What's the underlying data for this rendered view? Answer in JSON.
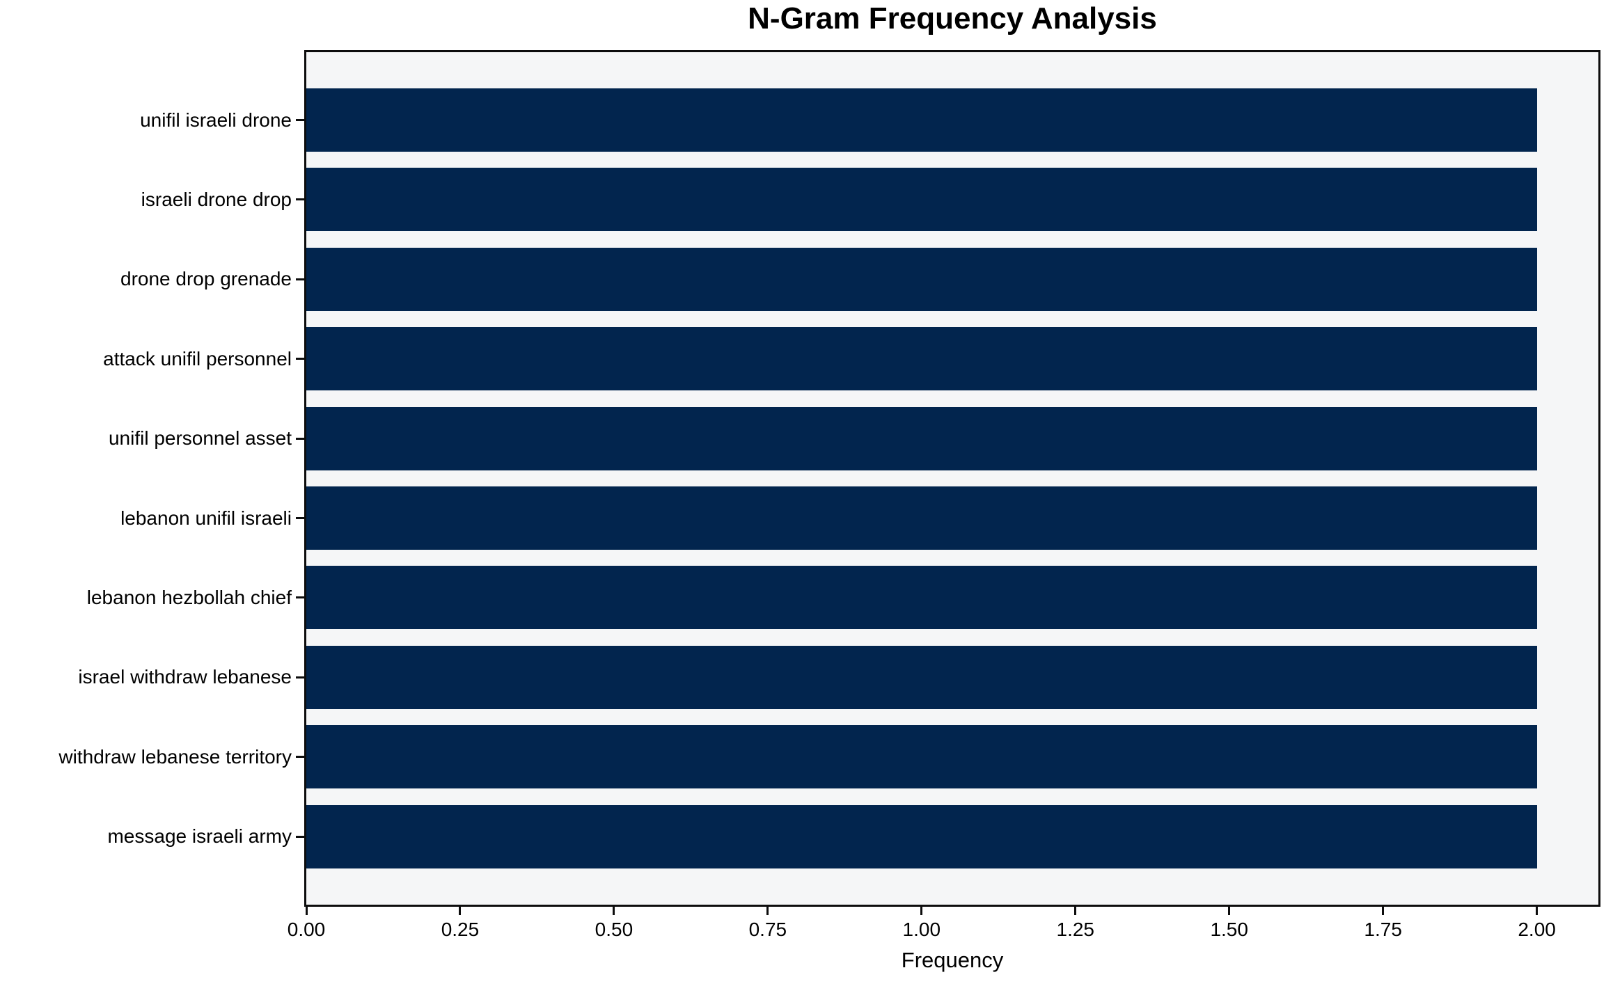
{
  "chart_data": {
    "type": "bar",
    "orientation": "horizontal",
    "title": "N-Gram Frequency Analysis",
    "xlabel": "Frequency",
    "ylabel": "",
    "categories": [
      "unifil israeli drone",
      "israeli drone drop",
      "drone drop grenade",
      "attack unifil personnel",
      "unifil personnel asset",
      "lebanon unifil israeli",
      "lebanon hezbollah chief",
      "israel withdraw lebanese",
      "withdraw lebanese territory",
      "message israeli army"
    ],
    "values": [
      2,
      2,
      2,
      2,
      2,
      2,
      2,
      2,
      2,
      2
    ],
    "xticks": [
      0,
      0.25,
      0.5,
      0.75,
      1.0,
      1.25,
      1.5,
      1.75,
      2.0
    ],
    "xtick_labels": [
      "0.00",
      "0.25",
      "0.50",
      "0.75",
      "1.00",
      "1.25",
      "1.50",
      "1.75",
      "2.00"
    ],
    "xlim": [
      0,
      2.1
    ],
    "grid": false,
    "legend": null,
    "colors": {
      "bar": "#02254e",
      "plot_background": "#f5f6f7",
      "figure_background": "#ffffff",
      "spine": "#0d0d0d",
      "text": "#000000"
    }
  }
}
